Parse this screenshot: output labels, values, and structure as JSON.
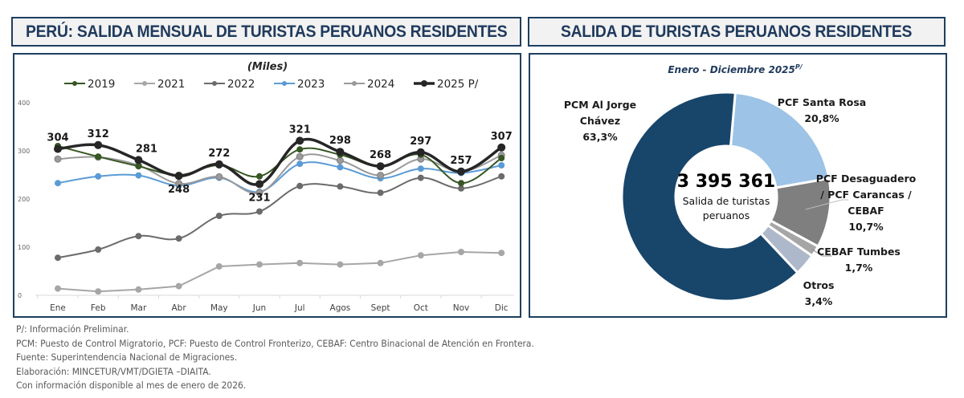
{
  "left_panel": {
    "title": "PERÚ: SALIDA MENSUAL DE TURISTAS PERUANOS RESIDENTES"
  },
  "right_panel": {
    "title": "SALIDA DE TURISTAS PERUANOS RESIDENTES"
  },
  "chart_data": [
    {
      "type": "line",
      "title": "(Miles)",
      "xlabel": "",
      "ylabel": "",
      "ylim": [
        0,
        400
      ],
      "yticks": [
        "0",
        "100",
        "200",
        "300",
        "400"
      ],
      "grid": false,
      "legend_position": "top",
      "categories": [
        "Ene",
        "Feb",
        "Mar",
        "Abr",
        "May",
        "Jun",
        "Jul",
        "Agos",
        "Sept",
        "Oct",
        "Nov",
        "Dic"
      ],
      "series": [
        {
          "name": "2019",
          "color": "#375623",
          "values": [
            310,
            288,
            268,
            250,
            270,
            247,
            303,
            292,
            268,
            292,
            233,
            285
          ]
        },
        {
          "name": "2021",
          "color": "#a6a6a6",
          "values": [
            14,
            8,
            12,
            19,
            60,
            64,
            67,
            64,
            67,
            83,
            90,
            88
          ]
        },
        {
          "name": "2022",
          "color": "#6b6b6b",
          "values": [
            78,
            95,
            123,
            118,
            165,
            174,
            227,
            226,
            213,
            244,
            222,
            247
          ]
        },
        {
          "name": "2023",
          "color": "#5b9bd5",
          "values": [
            233,
            247,
            249,
            228,
            244,
            215,
            273,
            266,
            243,
            263,
            254,
            270
          ]
        },
        {
          "name": "2024",
          "color": "#9a9a9a",
          "values": [
            283,
            287,
            270,
            232,
            246,
            213,
            288,
            280,
            249,
            283,
            257,
            291
          ]
        },
        {
          "name": "2025 P/",
          "color": "#262626",
          "values": [
            304,
            312,
            281,
            248,
            272,
            231,
            321,
            298,
            268,
            297,
            257,
            307
          ],
          "data_labels": [
            "304",
            "312",
            "281",
            "248",
            "272",
            "231",
            "321",
            "298",
            "268",
            "297",
            "257",
            "307"
          ]
        }
      ]
    },
    {
      "type": "pie",
      "title": "Enero - Diciembre 2025",
      "title_superscript": "P/",
      "center_value": "3 395 361",
      "center_label_line1": "Salida de turistas",
      "center_label_line2": "peruanos",
      "slices": [
        {
          "name": "PCF Santa Rosa",
          "label_lines": [
            "PCF Santa Rosa"
          ],
          "pct_label": "20,8%",
          "value": 20.8,
          "color": "#9dc3e6"
        },
        {
          "name": "PCF Desaguadero / PCF Carancas / CEBAF",
          "label_lines": [
            "PCF Desaguadero",
            "/ PCF Carancas /",
            "CEBAF"
          ],
          "pct_label": "10,7%",
          "value": 10.7,
          "color": "#7f7f7f"
        },
        {
          "name": "CEBAF Tumbes",
          "label_lines": [
            "CEBAF Tumbes"
          ],
          "pct_label": "1,7%",
          "value": 1.7,
          "color": "#a6a6a6"
        },
        {
          "name": "Otros",
          "label_lines": [
            "Otros"
          ],
          "pct_label": "3,4%",
          "value": 3.4,
          "color": "#adb9ca"
        },
        {
          "name": "PCM Al Jorge Chávez",
          "label_lines": [
            "PCM Al Jorge",
            "Chávez"
          ],
          "pct_label": "63,3%",
          "value": 63.3,
          "color": "#18456a"
        }
      ]
    }
  ],
  "notes": [
    "P/: Información Preliminar.",
    "PCM: Puesto de Control Migratorio, PCF: Puesto de Control Fronterizo,  CEBAF: Centro Binacional de Atención en Frontera.",
    "Fuente: Superintendencia Nacional de Migraciones.",
    "Elaboración: MINCETUR/VMT/DGIETA –DIAITA.",
    "Con información disponible al mes de enero de 2026."
  ]
}
